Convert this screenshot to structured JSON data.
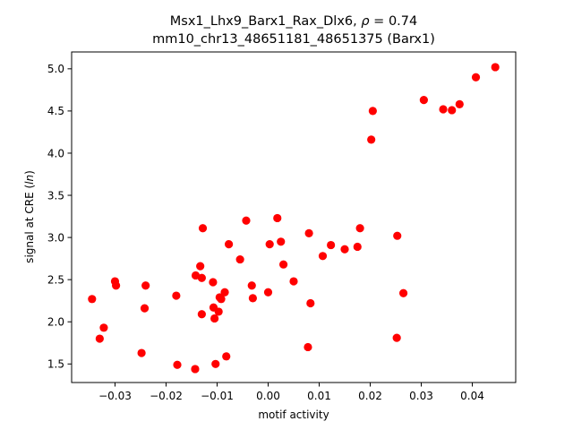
{
  "chart_data": {
    "type": "scatter",
    "title_line1_prefix": "Msx1_Lhx9_Barx1_Rax_Dlx6, ",
    "title_line1_rho": "ρ",
    "title_line1_suffix": " = 0.74",
    "title_line2": "mm10_chr13_48651181_48651375 (Barx1)",
    "xlabel": "motif activity",
    "ylabel_prefix": "signal at CRE (",
    "ylabel_italic": "ln",
    "ylabel_suffix": ")",
    "xlim": [
      -0.0385,
      0.0485
    ],
    "ylim": [
      1.28,
      5.2
    ],
    "xticks": [
      -0.03,
      -0.02,
      -0.01,
      0.0,
      0.01,
      0.02,
      0.03,
      0.04
    ],
    "xtick_labels": [
      "−0.03",
      "−0.02",
      "−0.01",
      "0.00",
      "0.01",
      "0.02",
      "0.03",
      "0.04"
    ],
    "yticks": [
      1.5,
      2.0,
      2.5,
      3.0,
      3.5,
      4.0,
      4.5,
      5.0
    ],
    "ytick_labels": [
      "1.5",
      "2.0",
      "2.5",
      "3.0",
      "3.5",
      "4.0",
      "4.5",
      "5.0"
    ],
    "grid": false,
    "point_color": "#ff0000",
    "points": [
      {
        "x": -0.0345,
        "y": 2.27
      },
      {
        "x": -0.033,
        "y": 1.8
      },
      {
        "x": -0.0322,
        "y": 1.93
      },
      {
        "x": -0.03,
        "y": 2.48
      },
      {
        "x": -0.0298,
        "y": 2.43
      },
      {
        "x": -0.0248,
        "y": 1.63
      },
      {
        "x": -0.0242,
        "y": 2.16
      },
      {
        "x": -0.024,
        "y": 2.43
      },
      {
        "x": -0.018,
        "y": 2.31
      },
      {
        "x": -0.0178,
        "y": 1.49
      },
      {
        "x": -0.0143,
        "y": 1.44
      },
      {
        "x": -0.0142,
        "y": 2.55
      },
      {
        "x": -0.0133,
        "y": 2.66
      },
      {
        "x": -0.013,
        "y": 2.09
      },
      {
        "x": -0.013,
        "y": 2.52
      },
      {
        "x": -0.0128,
        "y": 3.11
      },
      {
        "x": -0.0108,
        "y": 2.47
      },
      {
        "x": -0.0107,
        "y": 2.17
      },
      {
        "x": -0.0105,
        "y": 2.04
      },
      {
        "x": -0.0103,
        "y": 1.5
      },
      {
        "x": -0.0097,
        "y": 2.12
      },
      {
        "x": -0.0095,
        "y": 2.29
      },
      {
        "x": -0.0092,
        "y": 2.27
      },
      {
        "x": -0.0085,
        "y": 2.35
      },
      {
        "x": -0.0082,
        "y": 1.59
      },
      {
        "x": -0.0077,
        "y": 2.92
      },
      {
        "x": -0.0055,
        "y": 2.74
      },
      {
        "x": -0.0043,
        "y": 3.2
      },
      {
        "x": -0.0032,
        "y": 2.43
      },
      {
        "x": -0.003,
        "y": 2.28
      },
      {
        "x": 0.0,
        "y": 2.35
      },
      {
        "x": 0.0003,
        "y": 2.92
      },
      {
        "x": 0.0018,
        "y": 3.23
      },
      {
        "x": 0.0025,
        "y": 2.95
      },
      {
        "x": 0.003,
        "y": 2.68
      },
      {
        "x": 0.005,
        "y": 2.48
      },
      {
        "x": 0.0078,
        "y": 1.7
      },
      {
        "x": 0.008,
        "y": 3.05
      },
      {
        "x": 0.0083,
        "y": 2.22
      },
      {
        "x": 0.0107,
        "y": 2.78
      },
      {
        "x": 0.0123,
        "y": 2.91
      },
      {
        "x": 0.015,
        "y": 2.86
      },
      {
        "x": 0.0175,
        "y": 2.89
      },
      {
        "x": 0.018,
        "y": 3.11
      },
      {
        "x": 0.0202,
        "y": 4.16
      },
      {
        "x": 0.0205,
        "y": 4.5
      },
      {
        "x": 0.0252,
        "y": 1.81
      },
      {
        "x": 0.0253,
        "y": 3.02
      },
      {
        "x": 0.0265,
        "y": 2.34
      },
      {
        "x": 0.0305,
        "y": 4.63
      },
      {
        "x": 0.0343,
        "y": 4.52
      },
      {
        "x": 0.036,
        "y": 4.51
      },
      {
        "x": 0.0375,
        "y": 4.58
      },
      {
        "x": 0.0407,
        "y": 4.9
      },
      {
        "x": 0.0445,
        "y": 5.02
      }
    ]
  }
}
